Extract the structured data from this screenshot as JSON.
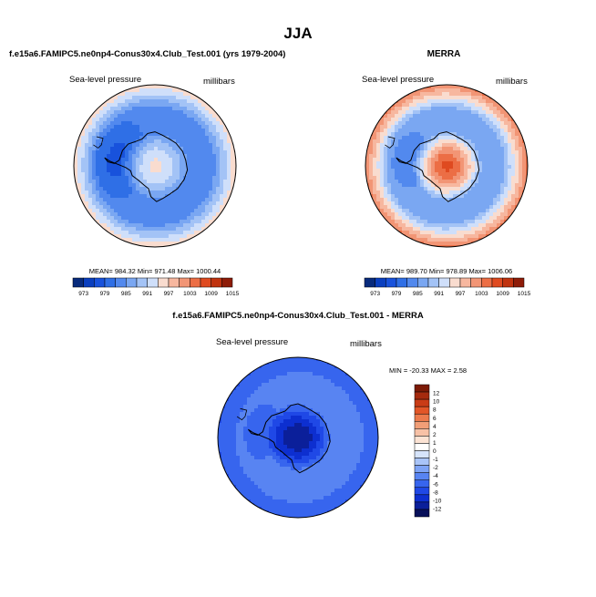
{
  "figure": {
    "title": "JJA",
    "panels": {
      "model": {
        "title": "f.e15a6.FAMIPC5.ne0np4-Conus30x4.Club_Test.001 (yrs 1979-2004)"
      },
      "obs": {
        "title": "MERRA"
      },
      "diff": {
        "title": "f.e15a6.FAMIPC5.ne0np4-Conus30x4.Club_Test.001 - MERRA"
      }
    }
  },
  "colors": {
    "abs_scale": [
      "#082b7c",
      "#0a3fbf",
      "#1852dc",
      "#2f6fe6",
      "#5289ee",
      "#7aa7f2",
      "#a3c3f6",
      "#cfdffa",
      "#f9dccf",
      "#f7b79f",
      "#f29575",
      "#ec6e45",
      "#df4a20",
      "#c0330f",
      "#8e1c08"
    ],
    "diff_scale": [
      "#08105a",
      "#0b1f9a",
      "#0d2fd0",
      "#1f48e6",
      "#3765ee",
      "#5884f2",
      "#7ea3f5",
      "#a9c4f8",
      "#d6e4fb",
      "#ffffff",
      "#fce3d4",
      "#f7c1a6",
      "#f19e77",
      "#ec7a4c",
      "#e25627",
      "#c93c16",
      "#a52a0e",
      "#7c1a06"
    ],
    "land_outline": "#000000"
  },
  "chart_data": [
    {
      "type": "heatmap",
      "projection": "south-polar stereographic",
      "title": "f.e15a6.FAMIPC5.ne0np4-Conus30x4.Club_Test.001 (yrs 1979-2004)",
      "left_label": "Sea-level pressure",
      "right_label": "millibars",
      "stats_text": "MEAN= 984.32  Min= 971.48  Max= 1000.44",
      "stats": {
        "mean": 984.32,
        "min": 971.48,
        "max": 1000.44
      },
      "colorbar_labels": [
        "973",
        "979",
        "985",
        "991",
        "997",
        "1003",
        "1009",
        "1015"
      ],
      "levels": [
        970,
        973,
        976,
        979,
        982,
        985,
        988,
        991,
        994,
        997,
        1000,
        1003,
        1006,
        1009,
        1012,
        1015
      ],
      "field": {
        "pole": 992,
        "coast": 981,
        "far": 993,
        "trough": 974,
        "trough_lon": 190
      }
    },
    {
      "type": "heatmap",
      "projection": "south-polar stereographic",
      "title": "MERRA",
      "left_label": "Sea-level pressure",
      "right_label": "millibars",
      "stats_text": "MEAN= 989.70  Min= 978.89  Max= 1006.06",
      "stats": {
        "mean": 989.7,
        "min": 978.89,
        "max": 1006.06
      },
      "colorbar_labels": [
        "973",
        "979",
        "985",
        "991",
        "997",
        "1003",
        "1009",
        "1015"
      ],
      "levels": [
        970,
        973,
        976,
        979,
        982,
        985,
        988,
        991,
        994,
        997,
        1000,
        1003,
        1006,
        1009,
        1012,
        1015
      ],
      "field": {
        "pole": 1004,
        "coast": 985,
        "far": 1000,
        "trough": 979,
        "trough_lon": 190
      }
    },
    {
      "type": "heatmap",
      "projection": "south-polar stereographic",
      "title": "f.e15a6.FAMIPC5.ne0np4-Conus30x4.Club_Test.001 - MERRA",
      "left_label": "Sea-level pressure",
      "right_label": "millibars",
      "stats_text": "MIN = -20.33  MAX =   2.58",
      "stats": {
        "min": -20.33,
        "max": 2.58
      },
      "colorbar_labels": [
        "12",
        "10",
        "8",
        "6",
        "4",
        "2",
        "1",
        "0",
        "-1",
        "-2",
        "-4",
        "-6",
        "-8",
        "-10",
        "-12"
      ],
      "levels": [
        -12,
        -10,
        -8,
        -6,
        -4,
        -2,
        -1,
        0,
        1,
        2,
        4,
        6,
        8,
        10,
        12
      ],
      "field": {
        "pole": -12,
        "coast": -3,
        "far": -6,
        "trough": -5,
        "trough_lon": 190
      }
    }
  ]
}
